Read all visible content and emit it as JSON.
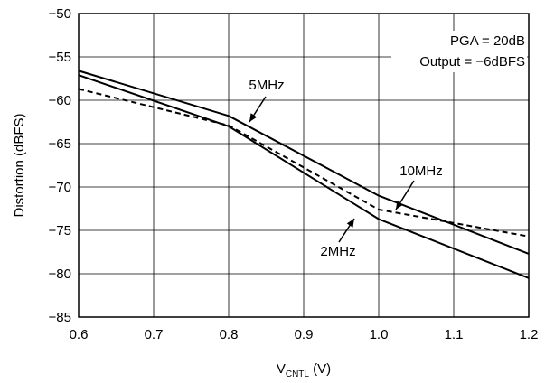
{
  "chart_data": {
    "type": "line",
    "xlabel_main": "V",
    "xlabel_sub": "CNTL",
    "xlabel_unit": " (V)",
    "ylabel": "Distortion (dBFS)",
    "xlim": [
      0.6,
      1.2
    ],
    "ylim": [
      -85,
      -50
    ],
    "x_ticks": [
      "0.6",
      "0.7",
      "0.8",
      "0.9",
      "1.0",
      "1.1",
      "1.2"
    ],
    "y_ticks": [
      "−50",
      "−55",
      "−60",
      "−65",
      "−70",
      "−75",
      "−80",
      "−85"
    ],
    "grid": true,
    "annotations": [
      "PGA = 20dB",
      "Output = −6dBFS"
    ],
    "series": [
      {
        "name": "5MHz",
        "dash": "solid",
        "x": [
          0.6,
          0.8,
          1.0,
          1.2
        ],
        "y": [
          -56.6,
          -61.8,
          -71.0,
          -77.7
        ]
      },
      {
        "name": "2MHz",
        "dash": "solid",
        "x": [
          0.6,
          0.8,
          1.0,
          1.2
        ],
        "y": [
          -57.1,
          -63.0,
          -73.7,
          -80.5
        ]
      },
      {
        "name": "10MHz",
        "dash": "dashed",
        "x": [
          0.6,
          0.8,
          1.0,
          1.2
        ],
        "y": [
          -58.7,
          -62.9,
          -72.6,
          -75.7
        ]
      }
    ],
    "series_labels": [
      {
        "text": "5MHz",
        "series": 0
      },
      {
        "text": "10MHz",
        "series": 2
      },
      {
        "text": "2MHz",
        "series": 1
      }
    ]
  }
}
